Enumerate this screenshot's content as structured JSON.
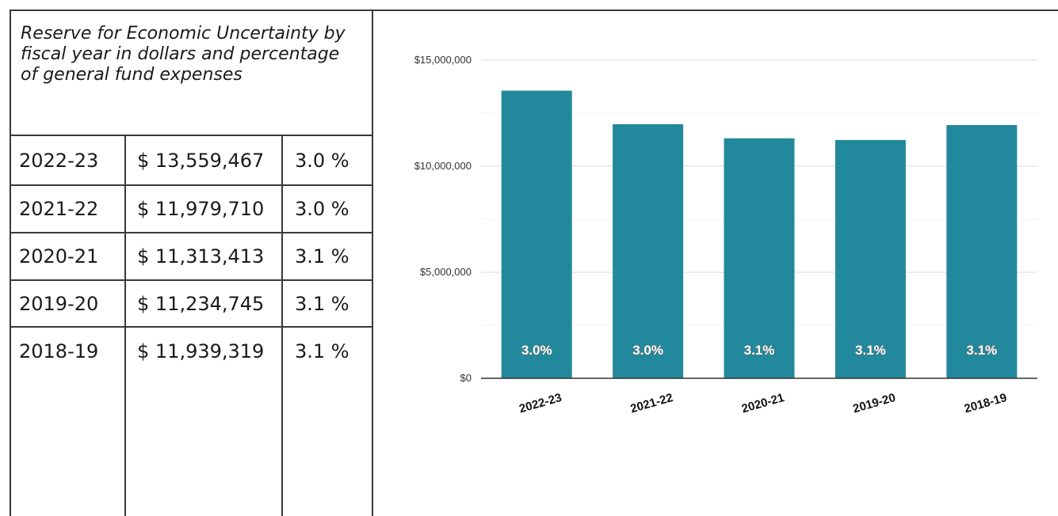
{
  "table": {
    "title": "Reserve for Economic Uncertainty by fiscal year in dollars and percentage of general fund expenses",
    "rows": [
      {
        "year": "2022-23",
        "amount": "$ 13,559,467",
        "percent": "3.0 %"
      },
      {
        "year": "2021-22",
        "amount": "$ 11,979,710",
        "percent": "3.0 %"
      },
      {
        "year": "2020-21",
        "amount": "$ 11,313,413",
        "percent": "3.1 %"
      },
      {
        "year": "2019-20",
        "amount": "$ 11,234,745",
        "percent": "3.1 %"
      },
      {
        "year": "2018-19",
        "amount": "$ 11,939,319",
        "percent": "3.1 %"
      }
    ]
  },
  "chart_data": {
    "type": "bar",
    "categories": [
      "2022-23",
      "2021-22",
      "2020-21",
      "2019-20",
      "2018-19"
    ],
    "values": [
      13559467,
      11979710,
      11313413,
      11234745,
      11939319
    ],
    "data_labels": [
      "3.0%",
      "3.0%",
      "3.1%",
      "3.1%",
      "3.1%"
    ],
    "y_ticks": [
      0,
      5000000,
      10000000,
      15000000
    ],
    "y_tick_labels": [
      "$0",
      "$5,000,000",
      "$10,000,000",
      "$15,000,000"
    ],
    "ylim": [
      0,
      15000000
    ],
    "grid": true,
    "bar_color": "#22889c",
    "title": "",
    "xlabel": "",
    "ylabel": ""
  }
}
